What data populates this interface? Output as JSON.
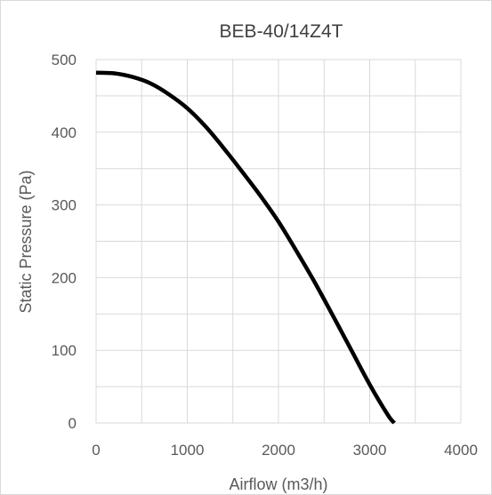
{
  "chart_data": {
    "type": "line",
    "title": "BEB-40/14Z4T",
    "xlabel": "Airflow (m3/h)",
    "ylabel": "Static Pressure (Pa)",
    "xlim": [
      0,
      4000
    ],
    "ylim": [
      0,
      500
    ],
    "x_major_ticks": [
      0,
      1000,
      2000,
      3000,
      4000
    ],
    "x_minor_step": 500,
    "y_major_ticks": [
      0,
      100,
      200,
      300,
      400,
      500
    ],
    "y_minor_step": 50,
    "x_tick_labels": [
      "0",
      "1000",
      "2000",
      "3000",
      "4000"
    ],
    "y_tick_labels": [
      "0",
      "100",
      "200",
      "300",
      "400",
      "500"
    ],
    "grid": true,
    "legend": "none",
    "series": [
      {
        "color": "#000000",
        "x": [
          0,
          200,
          400,
          600,
          800,
          1000,
          1200,
          1400,
          1600,
          1800,
          2000,
          2200,
          2400,
          2600,
          2800,
          3000,
          3200,
          3270
        ],
        "y": [
          482,
          481,
          476,
          467,
          452,
          433,
          408,
          378,
          346,
          313,
          277,
          236,
          193,
          147,
          100,
          53,
          11,
          0
        ]
      }
    ]
  },
  "colors": {
    "grid": "#d9d9d9",
    "frame": "#d9d9d9",
    "text": "#595959",
    "title": "#404040",
    "line": "#000000"
  }
}
